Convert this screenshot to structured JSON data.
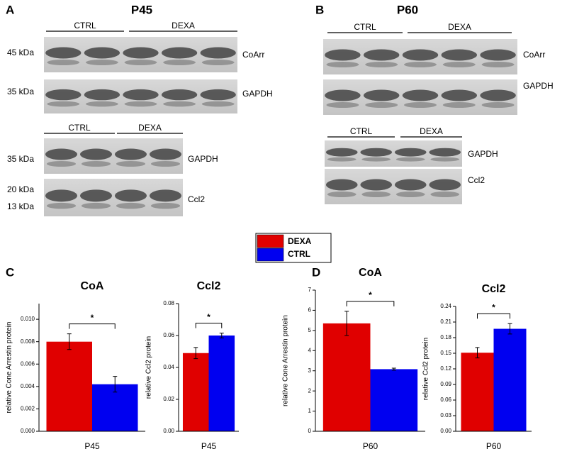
{
  "blots": [
    {
      "panel": "A",
      "title": "P45",
      "groups": [
        {
          "headers": [
            "CTRL",
            "DEXA"
          ],
          "rows": [
            {
              "mw": [
                "45 kDa"
              ],
              "protein": "CoArr"
            },
            {
              "mw": [
                "35 kDa"
              ],
              "protein": "GAPDH"
            }
          ]
        },
        {
          "headers": [
            "CTRL",
            "DEXA"
          ],
          "rows": [
            {
              "mw": [
                "35 kDa"
              ],
              "protein": "GAPDH"
            },
            {
              "mw": [
                "20 kDa",
                "13 kDa"
              ],
              "protein": "Ccl2"
            }
          ]
        }
      ]
    },
    {
      "panel": "B",
      "title": "P60",
      "groups": [
        {
          "headers": [
            "CTRL",
            "DEXA"
          ],
          "rows": [
            {
              "mw": [],
              "protein": "CoArr"
            },
            {
              "mw": [],
              "protein": "GAPDH"
            }
          ]
        },
        {
          "headers": [
            "CTRL",
            "DEXA"
          ],
          "rows": [
            {
              "mw": [],
              "protein": "GAPDH"
            },
            {
              "mw": [],
              "protein": "Ccl2"
            }
          ]
        }
      ]
    }
  ],
  "chart_data": [
    {
      "type": "bar",
      "panel": "C",
      "title": "CoA",
      "ylabel": "relative Cone Arrestin protein",
      "categories": [
        "P45"
      ],
      "series": [
        {
          "name": "DEXA",
          "color": "#e00000",
          "values": [
            0.008
          ],
          "errors": [
            0.0007
          ]
        },
        {
          "name": "CTRL",
          "color": "#0000f0",
          "values": [
            0.0042
          ],
          "errors": [
            0.0007
          ]
        }
      ],
      "annotation": "*",
      "ylim": [
        0,
        0.0114
      ],
      "yticks": [
        {
          "value": 0,
          "label": "0.000"
        },
        {
          "value": 0.002,
          "label": "0.002"
        },
        {
          "value": 0.004,
          "label": "0.004"
        },
        {
          "value": 0.006,
          "label": "0.006"
        },
        {
          "value": 0.008,
          "label": "0.008"
        },
        {
          "value": 0.01,
          "label": "0.010"
        }
      ]
    },
    {
      "type": "bar",
      "title": "Ccl2",
      "ylabel": "relative Ccl2 protein",
      "categories": [
        "P45"
      ],
      "series": [
        {
          "name": "DEXA",
          "color": "#e00000",
          "values": [
            0.049
          ],
          "errors": [
            0.0035
          ]
        },
        {
          "name": "CTRL",
          "color": "#0000f0",
          "values": [
            0.06
          ],
          "errors": [
            0.0015
          ]
        }
      ],
      "annotation": "*",
      "ylim": [
        0,
        0.08
      ],
      "yticks": [
        {
          "value": 0,
          "label": "0.00"
        },
        {
          "value": 0.02,
          "label": "0.02"
        },
        {
          "value": 0.04,
          "label": "0.04"
        },
        {
          "value": 0.06,
          "label": "0.06"
        },
        {
          "value": 0.08,
          "label": "0.08"
        }
      ]
    },
    {
      "type": "bar",
      "panel": "D",
      "title": "CoA",
      "ylabel": "relative Cone Arrestin protein",
      "categories": [
        "P60"
      ],
      "series": [
        {
          "name": "DEXA",
          "color": "#e00000",
          "values": [
            5.35
          ],
          "errors": [
            0.6
          ]
        },
        {
          "name": "CTRL",
          "color": "#0000f0",
          "values": [
            3.08
          ],
          "errors": [
            0.05
          ]
        }
      ],
      "annotation": "*",
      "ylim": [
        0,
        7
      ],
      "yticks": [
        0,
        1,
        2,
        3,
        4,
        5,
        6,
        7
      ]
    },
    {
      "type": "bar",
      "title": "Ccl2",
      "ylabel": "relative Ccl2 protein",
      "categories": [
        "P60"
      ],
      "series": [
        {
          "name": "DEXA",
          "color": "#e00000",
          "values": [
            0.151
          ],
          "errors": [
            0.01
          ]
        },
        {
          "name": "CTRL",
          "color": "#0000f0",
          "values": [
            0.197
          ],
          "errors": [
            0.01
          ]
        }
      ],
      "annotation": "*",
      "ylim": [
        0,
        0.24
      ],
      "yticks": [
        {
          "value": 0,
          "label": "0.00"
        },
        {
          "value": 0.03,
          "label": "0.03"
        },
        {
          "value": 0.06,
          "label": "0.06"
        },
        {
          "value": 0.09,
          "label": "0.09"
        },
        {
          "value": 0.12,
          "label": "0.12"
        },
        {
          "value": 0.15,
          "label": "0.15"
        },
        {
          "value": 0.18,
          "label": "0.18"
        },
        {
          "value": 0.21,
          "label": "0.21"
        },
        {
          "value": 0.24,
          "label": "0.24"
        }
      ]
    }
  ]
}
